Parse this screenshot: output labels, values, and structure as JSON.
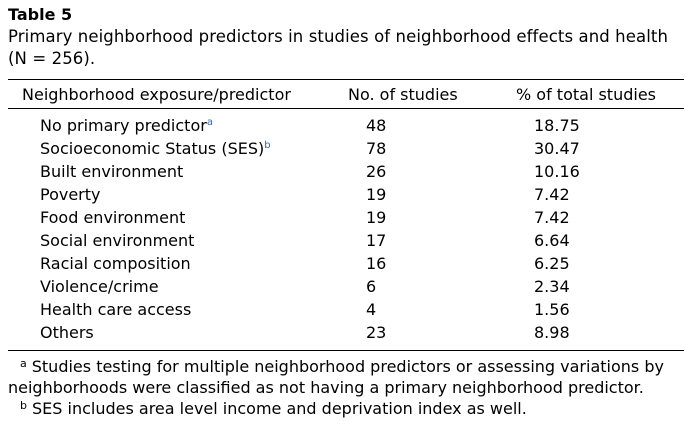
{
  "table_label": "Table 5",
  "caption": "Primary neighborhood predictors in studies of neighborhood effects and health (N = 256).",
  "columns": [
    "Neighborhood exposure/predictor",
    "No. of studies",
    "% of total studies"
  ],
  "rows": [
    {
      "predictor": "No primary predictor",
      "mark": "a",
      "studies": "48",
      "percent": "18.75"
    },
    {
      "predictor": "Socioeconomic Status (SES)",
      "mark": "b",
      "studies": "78",
      "percent": "30.47"
    },
    {
      "predictor": "Built environment",
      "mark": "",
      "studies": "26",
      "percent": "10.16"
    },
    {
      "predictor": "Poverty",
      "mark": "",
      "studies": "19",
      "percent": "7.42"
    },
    {
      "predictor": "Food environment",
      "mark": "",
      "studies": "19",
      "percent": "7.42"
    },
    {
      "predictor": "Social environment",
      "mark": "",
      "studies": "17",
      "percent": "6.64"
    },
    {
      "predictor": "Racial composition",
      "mark": "",
      "studies": "16",
      "percent": "6.25"
    },
    {
      "predictor": "Violence/crime",
      "mark": "",
      "studies": "6",
      "percent": "2.34"
    },
    {
      "predictor": "Health care access",
      "mark": "",
      "studies": "4",
      "percent": "1.56"
    },
    {
      "predictor": "Others",
      "mark": "",
      "studies": "23",
      "percent": "8.98"
    }
  ],
  "footnotes": [
    {
      "mark": "a",
      "text": "Studies testing for multiple neighborhood predictors or assessing variations by neighborhoods were classified as not having a primary neighborhood predictor."
    },
    {
      "mark": "b",
      "text": "SES includes area level income and deprivation index as well."
    }
  ],
  "colors": {
    "footnote_mark_link": "#2a6db5"
  }
}
